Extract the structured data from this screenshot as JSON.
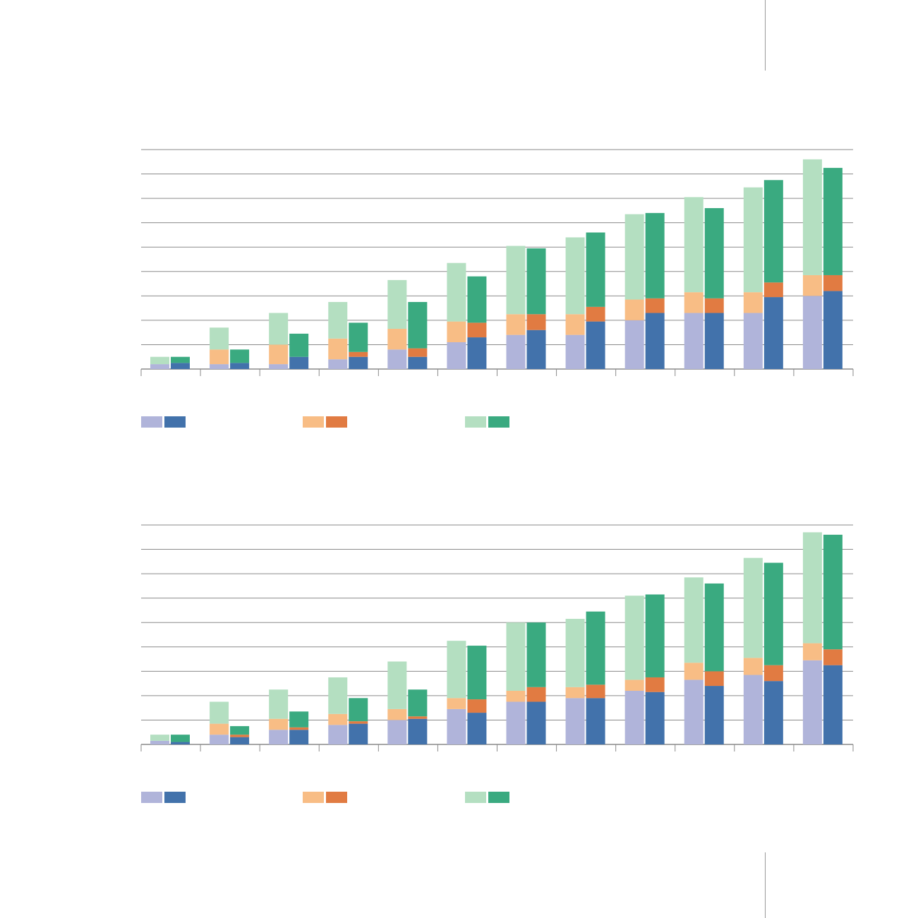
{
  "colors": {
    "series_1_light": "#b0b4da",
    "series_1_dark": "#4272ab",
    "series_2_light": "#f8bd85",
    "series_2_dark": "#e17b42",
    "series_3_light": "#b4dfc1",
    "series_3_dark": "#3aaa80",
    "gridline": "#8a8a8a",
    "axis": "#8a8a8a"
  },
  "chart_data": [
    {
      "type": "bar",
      "stacked": true,
      "grouped_pairs": true,
      "categories": [
        "",
        "",
        "",
        "",
        "",
        "",
        "",
        "",
        "",
        "",
        "",
        ""
      ],
      "ylim": [
        0,
        9
      ],
      "grid": true,
      "legend": "bottom-left",
      "series": [
        {
          "group": "light",
          "values": [
            {
              "s1": 0.2,
              "s2": 0.0,
              "s3": 0.3
            },
            {
              "s1": 0.2,
              "s2": 0.6,
              "s3": 0.9
            },
            {
              "s1": 0.2,
              "s2": 0.8,
              "s3": 1.3
            },
            {
              "s1": 0.4,
              "s2": 0.85,
              "s3": 1.5
            },
            {
              "s1": 0.8,
              "s2": 0.85,
              "s3": 2.0
            },
            {
              "s1": 1.1,
              "s2": 0.85,
              "s3": 2.4
            },
            {
              "s1": 1.4,
              "s2": 0.85,
              "s3": 2.8
            },
            {
              "s1": 1.4,
              "s2": 0.85,
              "s3": 3.15
            },
            {
              "s1": 2.0,
              "s2": 0.85,
              "s3": 3.5
            },
            {
              "s1": 2.3,
              "s2": 0.85,
              "s3": 3.9
            },
            {
              "s1": 2.3,
              "s2": 0.85,
              "s3": 4.3
            },
            {
              "s1": 3.0,
              "s2": 0.85,
              "s3": 4.75
            }
          ]
        },
        {
          "group": "dark",
          "values": [
            {
              "s1": 0.25,
              "s2": 0.0,
              "s3": 0.25
            },
            {
              "s1": 0.25,
              "s2": 0.0,
              "s3": 0.55
            },
            {
              "s1": 0.5,
              "s2": 0.0,
              "s3": 0.95
            },
            {
              "s1": 0.5,
              "s2": 0.2,
              "s3": 1.2
            },
            {
              "s1": 0.5,
              "s2": 0.35,
              "s3": 1.9
            },
            {
              "s1": 1.3,
              "s2": 0.6,
              "s3": 1.9
            },
            {
              "s1": 1.6,
              "s2": 0.65,
              "s3": 2.7
            },
            {
              "s1": 1.95,
              "s2": 0.6,
              "s3": 3.05
            },
            {
              "s1": 2.3,
              "s2": 0.6,
              "s3": 3.5
            },
            {
              "s1": 2.3,
              "s2": 0.6,
              "s3": 3.7
            },
            {
              "s1": 2.95,
              "s2": 0.6,
              "s3": 4.2
            },
            {
              "s1": 3.2,
              "s2": 0.65,
              "s3": 4.4
            }
          ]
        }
      ]
    },
    {
      "type": "bar",
      "stacked": true,
      "grouped_pairs": true,
      "categories": [
        "",
        "",
        "",
        "",
        "",
        "",
        "",
        "",
        "",
        "",
        "",
        ""
      ],
      "ylim": [
        0,
        9
      ],
      "grid": true,
      "legend": "bottom-left",
      "series": [
        {
          "group": "light",
          "values": [
            {
              "s1": 0.15,
              "s2": 0.0,
              "s3": 0.25
            },
            {
              "s1": 0.4,
              "s2": 0.45,
              "s3": 0.9
            },
            {
              "s1": 0.6,
              "s2": 0.45,
              "s3": 1.2
            },
            {
              "s1": 0.8,
              "s2": 0.45,
              "s3": 1.5
            },
            {
              "s1": 1.0,
              "s2": 0.45,
              "s3": 1.95
            },
            {
              "s1": 1.45,
              "s2": 0.45,
              "s3": 2.35
            },
            {
              "s1": 1.75,
              "s2": 0.45,
              "s3": 2.8
            },
            {
              "s1": 1.9,
              "s2": 0.45,
              "s3": 2.8
            },
            {
              "s1": 2.2,
              "s2": 0.45,
              "s3": 3.45
            },
            {
              "s1": 2.65,
              "s2": 0.7,
              "s3": 3.5
            },
            {
              "s1": 2.85,
              "s2": 0.7,
              "s3": 4.1
            },
            {
              "s1": 3.45,
              "s2": 0.7,
              "s3": 4.55
            }
          ]
        },
        {
          "group": "dark",
          "values": [
            {
              "s1": 0.1,
              "s2": 0.0,
              "s3": 0.3
            },
            {
              "s1": 0.3,
              "s2": 0.1,
              "s3": 0.35
            },
            {
              "s1": 0.6,
              "s2": 0.1,
              "s3": 0.65
            },
            {
              "s1": 0.85,
              "s2": 0.1,
              "s3": 0.95
            },
            {
              "s1": 1.05,
              "s2": 0.1,
              "s3": 1.1
            },
            {
              "s1": 1.3,
              "s2": 0.55,
              "s3": 2.2
            },
            {
              "s1": 1.75,
              "s2": 0.6,
              "s3": 2.65
            },
            {
              "s1": 1.9,
              "s2": 0.55,
              "s3": 3.0
            },
            {
              "s1": 2.15,
              "s2": 0.6,
              "s3": 3.4
            },
            {
              "s1": 2.4,
              "s2": 0.6,
              "s3": 3.6
            },
            {
              "s1": 2.6,
              "s2": 0.65,
              "s3": 4.2
            },
            {
              "s1": 3.25,
              "s2": 0.65,
              "s3": 4.7
            }
          ]
        }
      ]
    }
  ],
  "legend_items": [
    {
      "light": "series_1_light",
      "dark": "series_1_dark",
      "label": ""
    },
    {
      "light": "series_2_light",
      "dark": "series_2_dark",
      "label": ""
    },
    {
      "light": "series_3_light",
      "dark": "series_3_dark",
      "label": ""
    }
  ]
}
